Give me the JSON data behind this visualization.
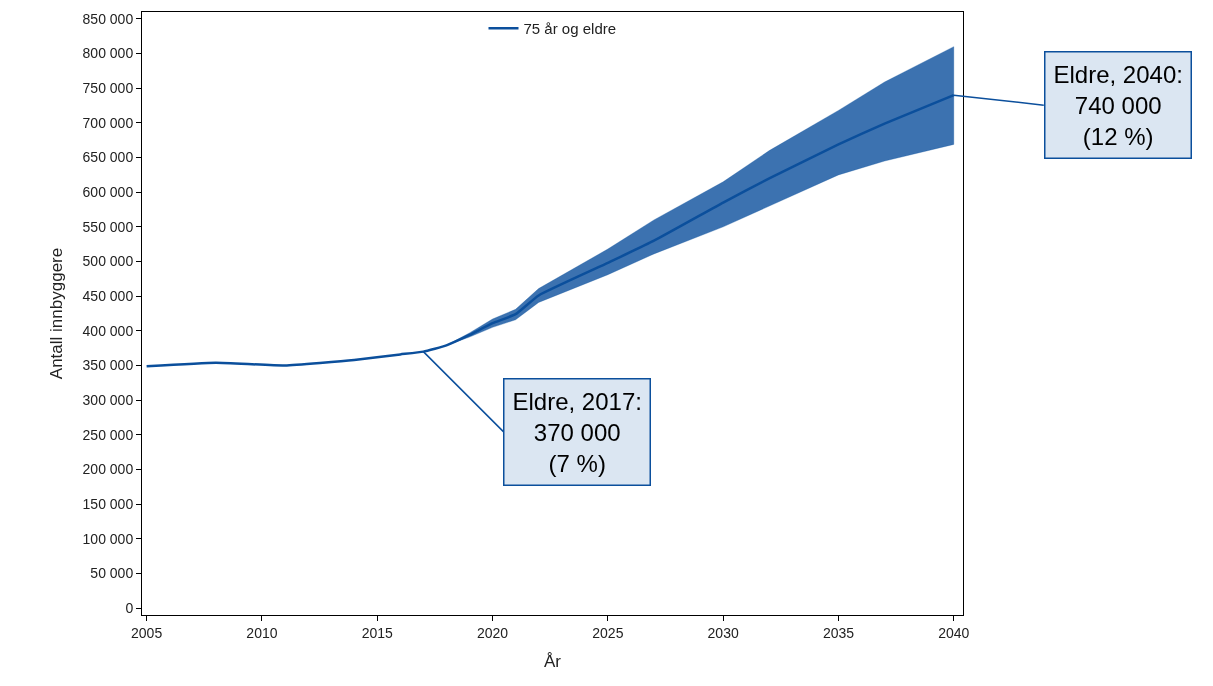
{
  "chart_data": {
    "type": "line",
    "xlabel": "År",
    "ylabel": "Antall innbyggere",
    "series": [
      {
        "name": "75 år og eldre",
        "color": "#0b4f9c",
        "x": [
          2005,
          2008,
          2011,
          2014,
          2016,
          2017,
          2018,
          2019,
          2020,
          2021,
          2022,
          2025,
          2027,
          2030,
          2032,
          2035,
          2037,
          2040
        ],
        "values": [
          349000,
          354000,
          350000,
          358000,
          366000,
          370000,
          379000,
          394000,
          411000,
          424000,
          451000,
          498000,
          530000,
          585000,
          620000,
          669000,
          699000,
          740000
        ],
        "lower": [
          null,
          null,
          null,
          null,
          null,
          null,
          379000,
          391000,
          405000,
          416000,
          441000,
          481000,
          511000,
          550000,
          580000,
          625000,
          645000,
          669000
        ],
        "upper": [
          null,
          null,
          null,
          null,
          null,
          null,
          379000,
          397000,
          417000,
          431000,
          461000,
          518000,
          560000,
          615000,
          660000,
          718000,
          759000,
          810000
        ]
      }
    ],
    "annotations": [
      {
        "text": "Eldre, 2017:\n370 000\n(7 %)",
        "x": 2017,
        "y": 370000
      },
      {
        "text": "Eldre, 2040:\n740 000\n(12 %)",
        "x": 2040,
        "y": 740000
      }
    ],
    "xlim": [
      2004.8,
      2040.4
    ],
    "xticks": [
      2005,
      2010,
      2015,
      2020,
      2025,
      2030,
      2035,
      2040
    ],
    "ylim": [
      -10000,
      860000
    ],
    "yticks": [
      {
        "value": 0,
        "label": "0"
      },
      {
        "value": 50000,
        "label": "50 000"
      },
      {
        "value": 100000,
        "label": "100 000"
      },
      {
        "value": 150000,
        "label": "150 000"
      },
      {
        "value": 200000,
        "label": "200 000"
      },
      {
        "value": 250000,
        "label": "250 000"
      },
      {
        "value": 300000,
        "label": "300 000"
      },
      {
        "value": 350000,
        "label": "350 000"
      },
      {
        "value": 400000,
        "label": "400 000"
      },
      {
        "value": 450000,
        "label": "450 000"
      },
      {
        "value": 500000,
        "label": "500 000"
      },
      {
        "value": 550000,
        "label": "550 000"
      },
      {
        "value": 600000,
        "label": "600 000"
      },
      {
        "value": 650000,
        "label": "650 000"
      },
      {
        "value": 700000,
        "label": "700 000"
      },
      {
        "value": 750000,
        "label": "750 000"
      },
      {
        "value": 800000,
        "label": "800 000"
      },
      {
        "value": 850000,
        "label": "850 000"
      }
    ],
    "legend": "top",
    "marker": "none",
    "line_style": "solid"
  }
}
